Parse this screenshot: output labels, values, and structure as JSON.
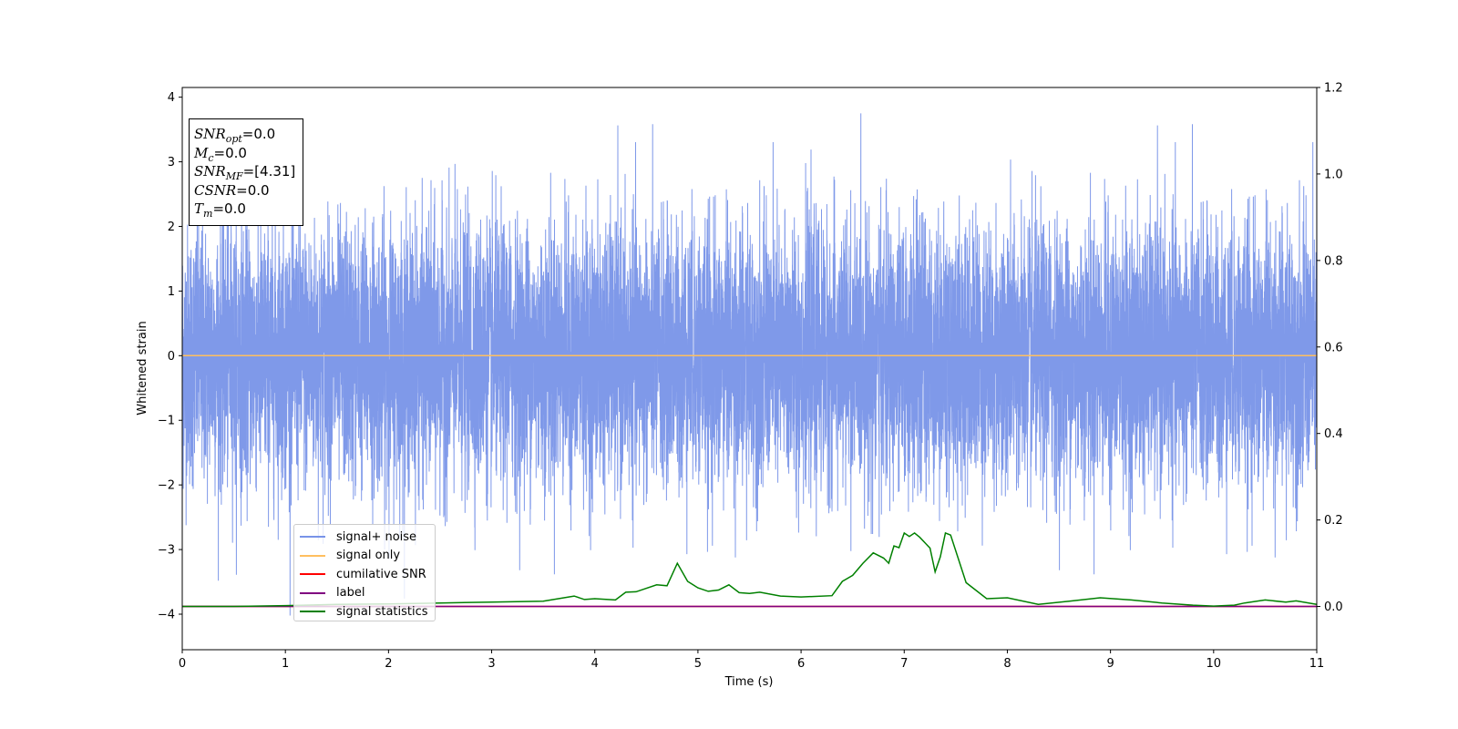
{
  "chart_data": {
    "type": "line",
    "xlabel": "Time (s)",
    "ylabel": "Whitened strain",
    "xlim": [
      0,
      11
    ],
    "ylim_left": [
      -4.55,
      4.15
    ],
    "ylim_right": [
      -0.1,
      1.2
    ],
    "x_ticks": [
      "0",
      "1",
      "2",
      "3",
      "4",
      "5",
      "6",
      "7",
      "8",
      "9",
      "10",
      "11"
    ],
    "y_ticks_left": [
      "−4",
      "−3",
      "−2",
      "−1",
      "0",
      "1",
      "2",
      "3",
      "4"
    ],
    "y_ticks_right": [
      "0.0",
      "0.2",
      "0.4",
      "0.6",
      "0.8",
      "1.0",
      "1.2"
    ],
    "info_box": {
      "snr_opt": {
        "sym": "SNR",
        "sub": "opt",
        "value": "=0.0"
      },
      "mc": {
        "sym": "M",
        "sub": "c",
        "value": "=0.0"
      },
      "snr_mf": {
        "sym": "SNR",
        "sub": "MF",
        "value": "=[4.31]"
      },
      "csnr": {
        "sym": "CSNR",
        "sub": "",
        "value": "=0.0"
      },
      "tm": {
        "sym": "T",
        "sub": "m",
        "value": "=0.0"
      }
    },
    "series": [
      {
        "name": "signal+ noise",
        "color": "#7893e8",
        "axis": "left",
        "style": "noise",
        "x_range": [
          0,
          11
        ],
        "approx_mean": 0,
        "approx_std": 1,
        "typical_range": [
          -2.5,
          2.5
        ]
      },
      {
        "name": "signal only",
        "color": "#ffbf5f",
        "axis": "left",
        "x": [
          0,
          11
        ],
        "y": [
          0,
          0
        ]
      },
      {
        "name": "cumilative SNR",
        "color": "#ff0000",
        "axis": "right",
        "x": [
          0,
          11
        ],
        "y": [
          0,
          0
        ]
      },
      {
        "name": "label",
        "color": "#800080",
        "axis": "right",
        "x": [
          0,
          11
        ],
        "y": [
          0,
          0
        ]
      },
      {
        "name": "signal statistics",
        "color": "#008000",
        "axis": "right",
        "x": [
          0,
          0.5,
          1,
          1.5,
          2,
          2.5,
          3,
          3.5,
          3.7,
          3.8,
          3.9,
          4.0,
          4.2,
          4.3,
          4.4,
          4.6,
          4.7,
          4.8,
          4.9,
          5.0,
          5.1,
          5.2,
          5.3,
          5.4,
          5.5,
          5.6,
          5.8,
          6.0,
          6.3,
          6.4,
          6.5,
          6.6,
          6.7,
          6.8,
          6.85,
          6.9,
          6.95,
          7.0,
          7.05,
          7.1,
          7.15,
          7.25,
          7.3,
          7.35,
          7.4,
          7.45,
          7.6,
          7.8,
          8.0,
          8.3,
          8.6,
          8.9,
          9.2,
          9.5,
          9.8,
          10.0,
          10.2,
          10.3,
          10.5,
          10.7,
          10.8,
          11
        ],
        "y": [
          0.0,
          0.0,
          0.002,
          0.005,
          0.006,
          0.008,
          0.01,
          0.012,
          0.02,
          0.024,
          0.016,
          0.018,
          0.015,
          0.033,
          0.034,
          0.05,
          0.048,
          0.1,
          0.058,
          0.043,
          0.035,
          0.038,
          0.05,
          0.032,
          0.03,
          0.033,
          0.024,
          0.022,
          0.025,
          0.058,
          0.072,
          0.1,
          0.124,
          0.112,
          0.1,
          0.14,
          0.136,
          0.17,
          0.162,
          0.17,
          0.16,
          0.135,
          0.08,
          0.115,
          0.17,
          0.165,
          0.055,
          0.018,
          0.02,
          0.005,
          0.012,
          0.02,
          0.015,
          0.008,
          0.003,
          0.001,
          0.003,
          0.008,
          0.015,
          0.01,
          0.013,
          0.005
        ]
      }
    ],
    "legend_position": "lower left"
  }
}
